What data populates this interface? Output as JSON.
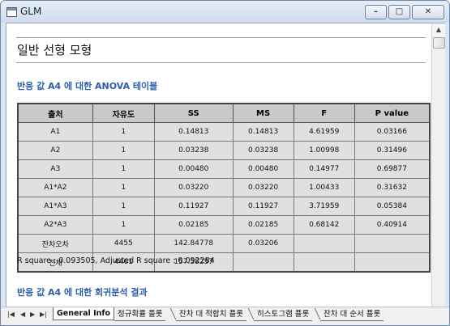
{
  "window": {
    "title": "GLM"
  },
  "title_buttons": {
    "minimize": "–",
    "maximize": "□",
    "close": "✕"
  },
  "report": {
    "heading": "일반 선형 모형",
    "anova_title": "반응 값 A4 에 대한 ANOVA 테이블",
    "columns": [
      "출처",
      "자유도",
      "SS",
      "MS",
      "F",
      "P value"
    ],
    "rows": [
      [
        "A1",
        "1",
        "0.14813",
        "0.14813",
        "4.61959",
        "0.03166"
      ],
      [
        "A2",
        "1",
        "0.03238",
        "0.03238",
        "1.00998",
        "0.31496"
      ],
      [
        "A3",
        "1",
        "0.00480",
        "0.00480",
        "0.14977",
        "0.69877"
      ],
      [
        "A1*A2",
        "1",
        "0.03220",
        "0.03220",
        "1.00433",
        "0.31632"
      ],
      [
        "A1*A3",
        "1",
        "0.11927",
        "0.11927",
        "3.71959",
        "0.05384"
      ],
      [
        "A2*A3",
        "1",
        "0.02185",
        "0.02185",
        "0.68142",
        "0.40914"
      ],
      [
        "잔차오차",
        "4455",
        "142.84778",
        "0.03206",
        "",
        ""
      ],
      [
        "전체",
        "4461",
        "157.58257",
        "",
        "",
        ""
      ]
    ],
    "r_square_text": "R square : 0.093505, Adjusted R square : 0.092284",
    "regression_title": "반응 값 A4 에 대한 회귀분석 결과"
  },
  "scrollbar": {
    "up_arrow": "▲"
  },
  "tabs": {
    "nav": [
      "|◀",
      "◀",
      "▶",
      "▶|"
    ],
    "items": [
      {
        "label": "General Info",
        "active": true
      },
      {
        "label": "정규확률 플롯",
        "active": false
      },
      {
        "label": "잔차 대 적합치 플롯",
        "active": false
      },
      {
        "label": "히스토그램 플롯",
        "active": false
      },
      {
        "label": "잔차 대 순서 플롯",
        "active": false
      }
    ]
  }
}
